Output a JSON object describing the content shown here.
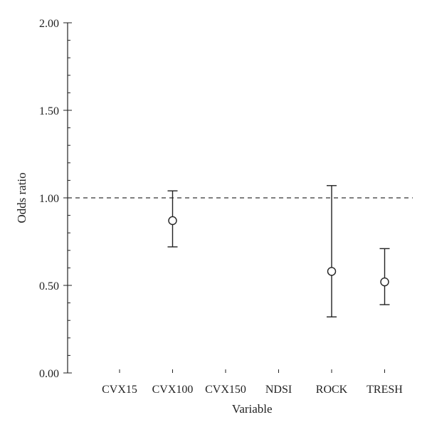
{
  "chart_data": {
    "type": "scatter",
    "title": "",
    "xlabel": "Variable",
    "ylabel": "Odds ratio",
    "ylim": [
      0,
      2
    ],
    "yticks": [
      "0.00",
      "0.50",
      "1.00",
      "1.50",
      "2.00"
    ],
    "yminor_step": 0.1,
    "reference_line": 1.0,
    "categories": [
      "CVX15",
      "CVX100",
      "CVX150",
      "NDSI",
      "ROCK",
      "TRESH"
    ],
    "points": [
      {
        "category": "CVX15",
        "value": null,
        "lower": null,
        "upper": null
      },
      {
        "category": "CVX100",
        "value": 0.87,
        "lower": 0.72,
        "upper": 1.04
      },
      {
        "category": "CVX150",
        "value": null,
        "lower": null,
        "upper": null
      },
      {
        "category": "NDSI",
        "value": null,
        "lower": null,
        "upper": null
      },
      {
        "category": "ROCK",
        "value": 0.58,
        "lower": 0.32,
        "upper": 1.07
      },
      {
        "category": "TRESH",
        "value": 0.52,
        "lower": 0.39,
        "upper": 0.71
      }
    ],
    "grid": false,
    "legend": "none",
    "colors": {
      "ink": "#222222",
      "marker_fill": "#ffffff"
    }
  }
}
